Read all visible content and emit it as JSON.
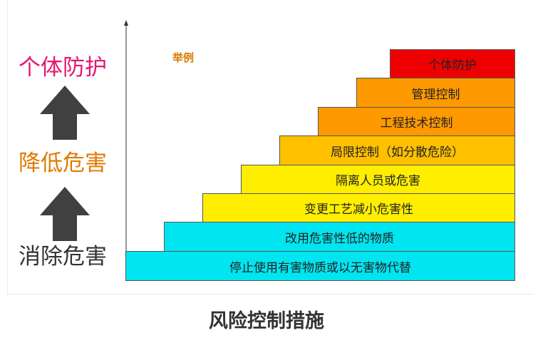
{
  "side_labels": {
    "top": {
      "text": "个体防护",
      "color": "#e6176f"
    },
    "middle": {
      "text": "降低危害",
      "color": "#e07b00"
    },
    "bottom": {
      "text": "消除危害",
      "color": "#333333"
    }
  },
  "legend_label": "举例",
  "steps": [
    {
      "label": "停止使用有害物质或以无害物代替",
      "color": "#00e5f0"
    },
    {
      "label": "改用危害性低的物质",
      "color": "#00e5f0"
    },
    {
      "label": "变更工艺减小危害性",
      "color": "#ffee00"
    },
    {
      "label": "隔离人员或危害",
      "color": "#ffee00"
    },
    {
      "label": "局限控制（如分散危险）",
      "color": "#ffc000"
    },
    {
      "label": "工程技术控制",
      "color": "#ff9900"
    },
    {
      "label": "管理控制",
      "color": "#ff9900"
    },
    {
      "label": "个体防护",
      "color": "#ee0000"
    }
  ],
  "caption": "风险控制措施"
}
